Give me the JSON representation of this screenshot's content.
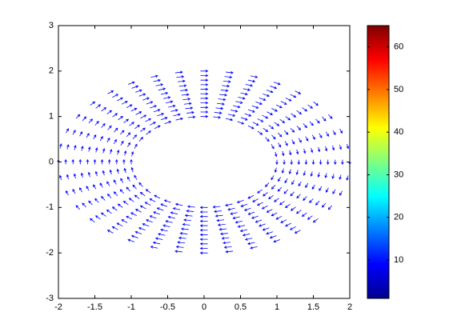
{
  "chart_data": {
    "type": "quiver",
    "color": "#0000ff",
    "radii": [
      1.0,
      1.1,
      1.2,
      1.3,
      1.4,
      1.5,
      1.6,
      1.7,
      1.8,
      1.9,
      2.0
    ],
    "angles": [
      0,
      10,
      20,
      30,
      40,
      50,
      60,
      70,
      80,
      90,
      100,
      110,
      120,
      130,
      140,
      150,
      160,
      170,
      180,
      190,
      200,
      210,
      220,
      230,
      240,
      250,
      260,
      270,
      280,
      290,
      300,
      310,
      320,
      330,
      340,
      350
    ],
    "xlim": [
      -2,
      2
    ],
    "xticks": [
      -2,
      -1.5,
      -1,
      -0.5,
      0,
      0.5,
      1,
      1.5,
      2
    ],
    "ylim": [
      -3,
      3
    ],
    "yticks": [
      -3,
      -2,
      -1,
      0,
      1,
      2,
      3
    ],
    "colorbar": {
      "lim": [
        1,
        65
      ],
      "ticks": [
        10,
        20,
        30,
        40,
        50,
        60
      ]
    }
  }
}
